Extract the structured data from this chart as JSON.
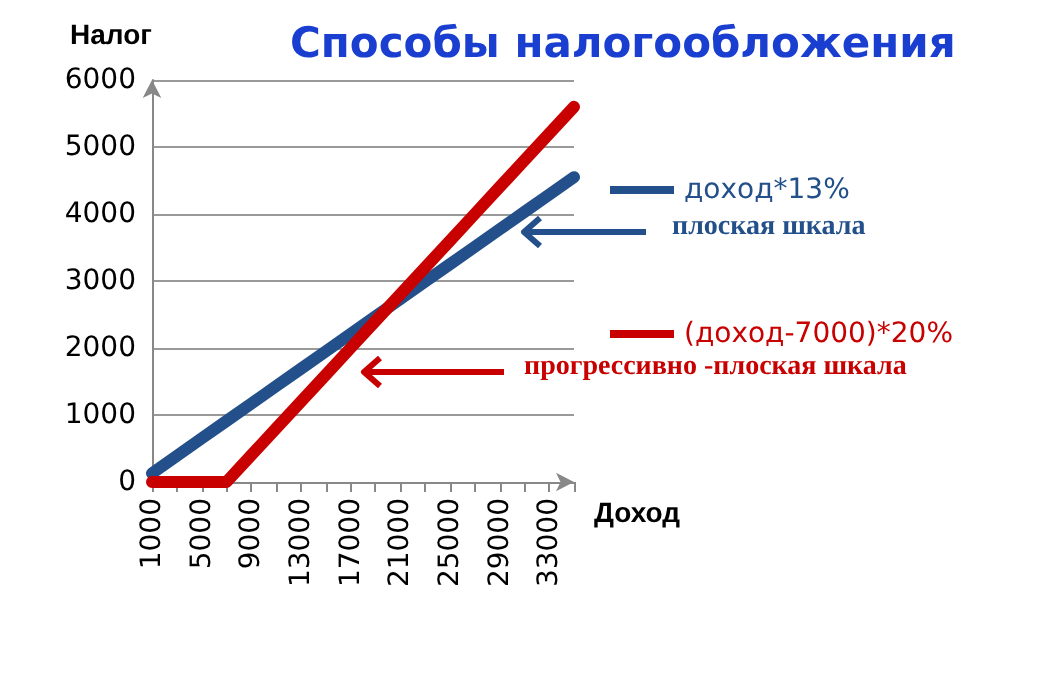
{
  "chart_data": {
    "type": "line",
    "title": "Способы налогообложения",
    "ylabel": "Налог",
    "xlabel": "Доход",
    "categories": [
      "1000",
      null,
      "5000",
      null,
      "9000",
      null,
      "13000",
      null,
      "17000",
      null,
      "21000",
      null,
      "25000",
      null,
      "29000",
      null,
      "33000",
      null
    ],
    "series": [
      {
        "name": "доход*13%",
        "color": "#23508a",
        "values": [
          130,
          390,
          650,
          910,
          1170,
          1430,
          1690,
          1950,
          2210,
          2470,
          2730,
          2990,
          3250,
          3510,
          3770,
          4030,
          4290,
          4550
        ]
      },
      {
        "name": "(доход-7000)*20%",
        "color": "#c80000",
        "values": [
          0,
          0,
          0,
          0,
          400,
          800,
          1200,
          1600,
          2000,
          2400,
          2800,
          3200,
          3600,
          4000,
          4400,
          4800,
          5200,
          5600
        ]
      }
    ],
    "ylim": [
      0,
      6000
    ],
    "yticks": [
      0,
      1000,
      2000,
      3000,
      4000,
      5000,
      6000
    ],
    "grid": "y",
    "legend": "right",
    "marker": "none",
    "line_style": "solid",
    "annotations": [
      "плоская шкала",
      "прогрессивно -плоская шкала"
    ]
  }
}
